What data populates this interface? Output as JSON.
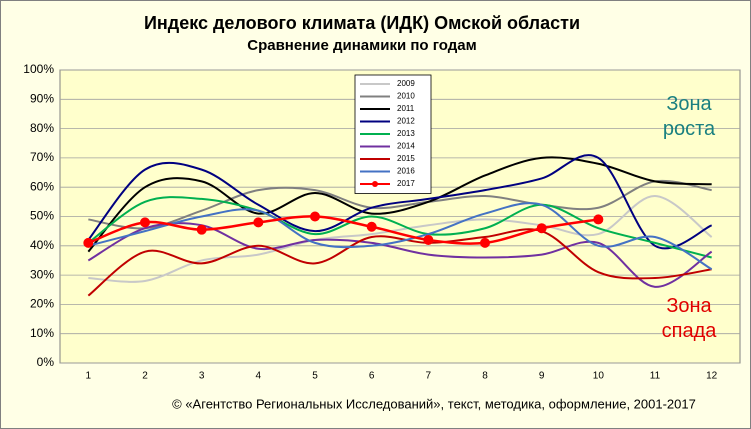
{
  "chart_data": {
    "type": "line",
    "title": "Индекс делового климата (ИДК) Омской области",
    "subtitle": "Сравнение динамики  по годам",
    "footer": "© «Агентство Региональных  Исследований»,  текст, методика, оформление,  2001-2017",
    "annotations": [
      {
        "text": "Зона\nроста",
        "color": "#1a8080"
      },
      {
        "text": "Зона\nспада",
        "color": "#e00000"
      }
    ],
    "categories": [
      "1",
      "2",
      "3",
      "4",
      "5",
      "6",
      "7",
      "8",
      "9",
      "10",
      "11",
      "12"
    ],
    "ylim": [
      0,
      100
    ],
    "yticks": [
      {
        "value": 0,
        "label": "0%"
      },
      {
        "value": 10,
        "label": "10%"
      },
      {
        "value": 20,
        "label": "20%"
      },
      {
        "value": 30,
        "label": "30%"
      },
      {
        "value": 40,
        "label": "40%"
      },
      {
        "value": 50,
        "label": "50%"
      },
      {
        "value": 60,
        "label": "60%"
      },
      {
        "value": 70,
        "label": "70%"
      },
      {
        "value": 80,
        "label": "80%"
      },
      {
        "value": 90,
        "label": "90%"
      },
      {
        "value": 100,
        "label": "100%"
      }
    ],
    "grid": true,
    "series": [
      {
        "name": "2009",
        "color": "#c8c8c8",
        "values": [
          29,
          28,
          35,
          37,
          42,
          44,
          47,
          49,
          47,
          44,
          57,
          43
        ]
      },
      {
        "name": "2010",
        "color": "#808080",
        "values": [
          49,
          46,
          52,
          59,
          59,
          53,
          55,
          57,
          54,
          53,
          62,
          59
        ]
      },
      {
        "name": "2011",
        "color": "#000000",
        "values": [
          38,
          60,
          62,
          51,
          58,
          51,
          55,
          64,
          70,
          68,
          62,
          61
        ]
      },
      {
        "name": "2012",
        "color": "#000080",
        "values": [
          42,
          66,
          66,
          54,
          45,
          53,
          56,
          59,
          63,
          70,
          40,
          47
        ]
      },
      {
        "name": "2013",
        "color": "#00b050",
        "values": [
          41,
          55,
          56,
          52,
          44,
          50,
          44,
          46,
          54,
          46,
          41,
          36
        ]
      },
      {
        "name": "2014",
        "color": "#7030a0",
        "values": [
          35,
          46,
          47,
          39,
          42,
          41,
          37,
          36,
          37,
          41,
          26,
          38
        ]
      },
      {
        "name": "2015",
        "color": "#c00000",
        "values": [
          23,
          38,
          34,
          40,
          34,
          43,
          41,
          43,
          45,
          31,
          29,
          32
        ]
      },
      {
        "name": "2016",
        "color": "#4472c4",
        "values": [
          40,
          45,
          50,
          52,
          41,
          40,
          44,
          51,
          54,
          40,
          43,
          32
        ]
      },
      {
        "name": "2017",
        "color": "#ff0000",
        "markers": true,
        "values": [
          41,
          48,
          45.5,
          48,
          50,
          46.5,
          42,
          41,
          46,
          49,
          null,
          null
        ]
      }
    ]
  }
}
